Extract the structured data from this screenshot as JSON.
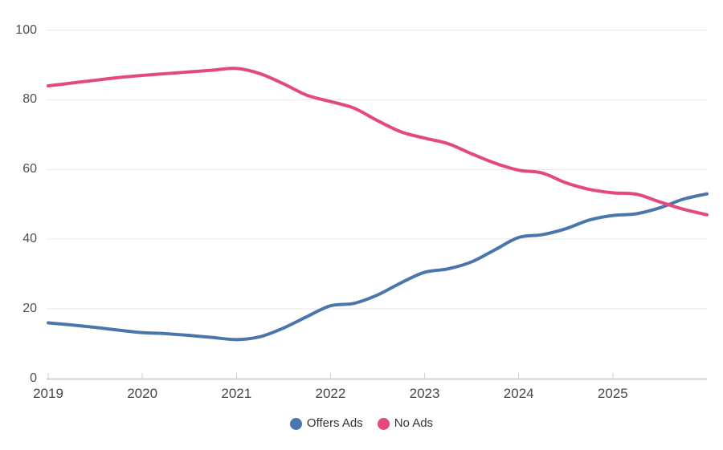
{
  "chart_data": {
    "type": "line",
    "title": "",
    "xlabel": "",
    "ylabel": "",
    "xlim": [
      2019,
      2026
    ],
    "ylim": [
      0,
      100
    ],
    "x_ticks": [
      2019,
      2020,
      2021,
      2022,
      2023,
      2024,
      2025
    ],
    "y_ticks": [
      0,
      20,
      40,
      60,
      80,
      100
    ],
    "grid": true,
    "legend_position": "bottom-center",
    "x": [
      2019,
      2019.25,
      2019.5,
      2019.75,
      2020,
      2020.25,
      2020.5,
      2020.75,
      2021,
      2021.25,
      2021.5,
      2021.75,
      2022,
      2022.25,
      2022.5,
      2022.75,
      2023,
      2023.25,
      2023.5,
      2023.75,
      2024,
      2024.25,
      2024.5,
      2024.75,
      2025,
      2025.25,
      2025.5,
      2025.75,
      2026
    ],
    "series": [
      {
        "name": "Offers Ads",
        "color": "#4a76ac",
        "values": [
          16,
          15.4,
          14.7,
          13.9,
          13.2,
          12.9,
          12.4,
          11.8,
          11.2,
          12,
          14.5,
          17.8,
          20.9,
          21.6,
          24,
          27.5,
          30.5,
          31.5,
          33.5,
          37,
          40.5,
          41.3,
          43,
          45.5,
          46.8,
          47.3,
          49,
          51.5,
          53
        ]
      },
      {
        "name": "No Ads",
        "color": "#e4497e",
        "values": [
          84,
          84.8,
          85.6,
          86.4,
          87,
          87.5,
          88,
          88.5,
          89,
          87.5,
          84.6,
          81.3,
          79.5,
          77.6,
          74,
          70.8,
          69,
          67.4,
          64.5,
          61.8,
          59.8,
          59,
          56.2,
          54.3,
          53.3,
          52.9,
          50.7,
          48.6,
          47
        ]
      }
    ],
    "colors": {
      "gridline": "#e8e8e8",
      "axis_line": "#d4d4d4",
      "tick": "#cfcfcf",
      "y_label": "#4f4f4f",
      "x_label": "#474747",
      "legend_text": "#333333",
      "background": "#ffffff"
    }
  }
}
